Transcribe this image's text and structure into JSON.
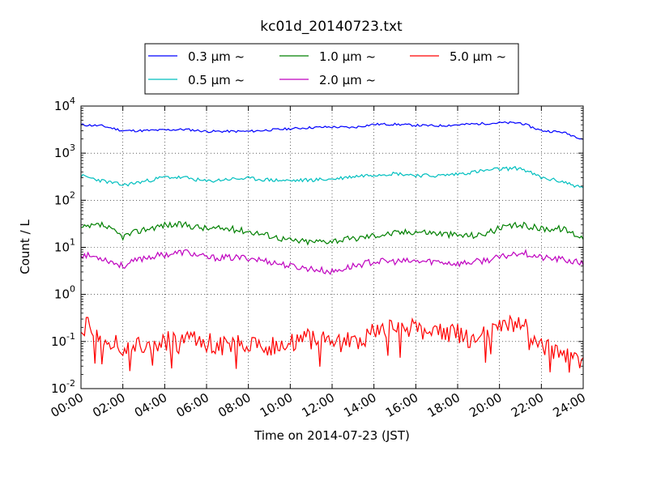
{
  "chart_data": {
    "type": "line",
    "title": "kc01d_20140723.txt",
    "xlabel": "Time on 2014-07-23 (JST)",
    "ylabel": "Count / L",
    "yscale": "log",
    "xlim": [
      "00:00",
      "24:00"
    ],
    "ylim": [
      0.01,
      10000
    ],
    "grid": true,
    "legend_position": "top",
    "x_ticks": [
      "00:00",
      "02:00",
      "04:00",
      "06:00",
      "08:00",
      "10:00",
      "12:00",
      "14:00",
      "16:00",
      "18:00",
      "20:00",
      "22:00",
      "24:00"
    ],
    "y_ticks": [
      {
        "base": "10",
        "exp": "-2",
        "value": 0.01
      },
      {
        "base": "10",
        "exp": "-1",
        "value": 0.1
      },
      {
        "base": "10",
        "exp": "0",
        "value": 1
      },
      {
        "base": "10",
        "exp": "1",
        "value": 10
      },
      {
        "base": "10",
        "exp": "2",
        "value": 100
      },
      {
        "base": "10",
        "exp": "3",
        "value": 1000
      },
      {
        "base": "10",
        "exp": "4",
        "value": 10000
      }
    ],
    "x": [
      "00:00",
      "01:00",
      "02:00",
      "03:00",
      "04:00",
      "05:00",
      "06:00",
      "07:00",
      "08:00",
      "09:00",
      "10:00",
      "11:00",
      "12:00",
      "13:00",
      "14:00",
      "15:00",
      "16:00",
      "17:00",
      "18:00",
      "19:00",
      "20:00",
      "21:00",
      "22:00",
      "23:00",
      "24:00"
    ],
    "series": [
      {
        "name": "0.3 μm ~",
        "color": "#0000ff",
        "values": [
          4000,
          3800,
          3000,
          3000,
          3100,
          3200,
          2900,
          2900,
          2900,
          3100,
          3300,
          3500,
          3600,
          3500,
          4100,
          4100,
          3900,
          3800,
          4000,
          4200,
          4400,
          4400,
          3000,
          2800,
          2000
        ]
      },
      {
        "name": "0.5 μm ~",
        "color": "#00bfbf",
        "values": [
          330,
          260,
          210,
          250,
          310,
          300,
          250,
          280,
          290,
          270,
          260,
          270,
          280,
          320,
          350,
          370,
          340,
          330,
          360,
          410,
          460,
          480,
          300,
          250,
          180
        ]
      },
      {
        "name": "1.0 μm ~",
        "color": "#008000",
        "values": [
          25,
          30,
          17,
          24,
          30,
          30,
          25,
          25,
          22,
          18,
          14,
          13,
          14,
          15,
          18,
          20,
          22,
          20,
          18,
          18,
          25,
          30,
          25,
          25,
          16
        ]
      },
      {
        "name": "2.0 μm ~",
        "color": "#bf00bf",
        "values": [
          7,
          6,
          4,
          6,
          7,
          8,
          6,
          6,
          6,
          5,
          4,
          3.5,
          3,
          4,
          5,
          5,
          5,
          5,
          4.5,
          5,
          6,
          8,
          6,
          5.5,
          4.5
        ]
      },
      {
        "name": "5.0 μm ~",
        "color": "#ff0000",
        "values": [
          0.25,
          0.12,
          0.07,
          0.08,
          0.1,
          0.1,
          0.1,
          0.08,
          0.1,
          0.08,
          0.1,
          0.12,
          0.09,
          0.1,
          0.15,
          0.18,
          0.2,
          0.15,
          0.15,
          0.12,
          0.22,
          0.28,
          0.08,
          0.06,
          0.03
        ]
      }
    ]
  }
}
